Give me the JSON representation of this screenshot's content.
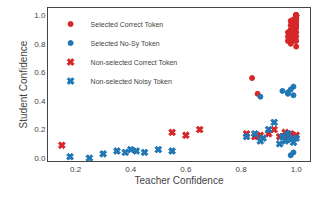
{
  "chart_data": {
    "type": "scatter",
    "xlabel": "Teacher Confidence",
    "ylabel": "Student Confidence",
    "xlim": [
      0.1,
      1.05
    ],
    "ylim": [
      -0.02,
      1.05
    ],
    "xticks": [
      0.2,
      0.4,
      0.6,
      0.8,
      {
        "value": 1.0,
        "label": "1.0"
      }
    ],
    "yticks": [
      {
        "value": 0.0,
        "label": "0.0"
      },
      0.2,
      0.4,
      0.6,
      0.8,
      {
        "value": 1.0,
        "label": "1.0"
      }
    ],
    "grid": false,
    "legend": "upper left",
    "series": [
      {
        "name": "Selected Correct Token",
        "color": "#d62728",
        "marker": "dot",
        "x": [
          0.97,
          0.97,
          0.97,
          0.98,
          0.98,
          0.98,
          0.98,
          0.98,
          0.98,
          0.99,
          0.99,
          0.99,
          0.99,
          0.99,
          0.99,
          0.995,
          0.995,
          0.995,
          1.0,
          1.0,
          1.0,
          1.0,
          1.0,
          1.0,
          1.0,
          1.0,
          1.0,
          1.0,
          1.0,
          1.0,
          1.0,
          1.0,
          1.0,
          1.0,
          1.0,
          1.0,
          1.0,
          1.0,
          1.0,
          0.84,
          0.86
        ],
        "values": [
          0.82,
          0.85,
          0.88,
          0.8,
          0.83,
          0.87,
          0.9,
          0.93,
          0.96,
          0.82,
          0.85,
          0.88,
          0.91,
          0.94,
          0.97,
          0.85,
          0.9,
          0.95,
          0.78,
          0.82,
          0.85,
          0.88,
          0.91,
          0.93,
          0.95,
          0.97,
          0.98,
          0.99,
          1.0,
          1.0,
          1.0,
          1.0,
          1.0,
          1.0,
          1.0,
          1.0,
          1.0,
          1.0,
          1.0,
          0.56,
          0.45
        ]
      },
      {
        "name": "Selected No-Sy Token",
        "color": "#1f77b4",
        "marker": "dot",
        "x": [
          0.99,
          0.97,
          0.98,
          0.99,
          0.87,
          0.98,
          0.99,
          0.95,
          0.97
        ],
        "values": [
          0.44,
          0.45,
          0.48,
          0.5,
          0.43,
          0.02,
          0.04,
          0.47,
          0.46
        ]
      },
      {
        "name": "Non-selected Correct Token",
        "color": "#d62728",
        "marker": "x",
        "x": [
          0.15,
          0.55,
          0.6,
          0.65,
          0.82,
          0.85,
          0.87,
          0.9,
          0.92,
          0.94,
          0.96,
          0.97,
          0.98,
          0.99,
          1.0
        ],
        "values": [
          0.09,
          0.18,
          0.16,
          0.2,
          0.17,
          0.15,
          0.16,
          0.17,
          0.2,
          0.15,
          0.18,
          0.16,
          0.17,
          0.15,
          0.16
        ]
      },
      {
        "name": "Non-selected Noisy Token",
        "color": "#1f77b4",
        "marker": "x",
        "x": [
          0.18,
          0.25,
          0.3,
          0.35,
          0.38,
          0.4,
          0.42,
          0.45,
          0.5,
          0.55,
          0.82,
          0.85,
          0.87,
          0.88,
          0.9,
          0.92,
          0.94,
          0.95,
          0.96,
          0.97,
          0.98,
          0.99,
          1.0
        ],
        "values": [
          0.01,
          0.0,
          0.03,
          0.05,
          0.04,
          0.06,
          0.05,
          0.04,
          0.06,
          0.05,
          0.15,
          0.17,
          0.12,
          0.14,
          0.2,
          0.25,
          0.1,
          0.15,
          0.12,
          0.17,
          0.13,
          0.11,
          0.14
        ]
      }
    ]
  }
}
